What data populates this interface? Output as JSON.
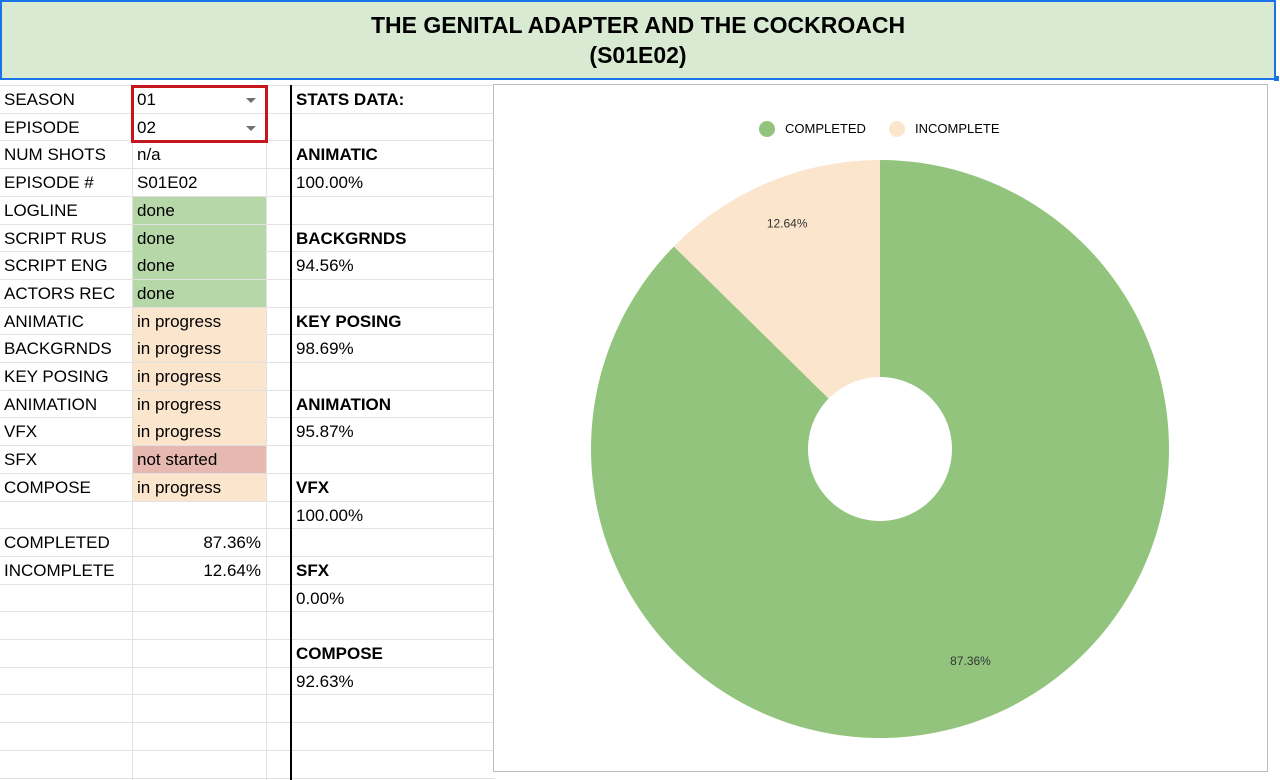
{
  "title": {
    "line1": "THE GENITAL ADAPTER AND THE COCKROACH",
    "line2": "(S01E02)"
  },
  "fields": [
    {
      "label": "SEASON",
      "value": "01",
      "status": "dropdown"
    },
    {
      "label": "EPISODE",
      "value": "02",
      "status": "dropdown"
    },
    {
      "label": "NUM SHOTS",
      "value": "n/a",
      "status": "plain"
    },
    {
      "label": "EPISODE #",
      "value": "S01E02",
      "status": "plain"
    },
    {
      "label": "LOGLINE",
      "value": "done",
      "status": "done"
    },
    {
      "label": "SCRIPT RUS",
      "value": "done",
      "status": "done"
    },
    {
      "label": "SCRIPT ENG",
      "value": "done",
      "status": "done"
    },
    {
      "label": "ACTORS REC",
      "value": "done",
      "status": "done"
    },
    {
      "label": "ANIMATIC",
      "value": "in progress",
      "status": "progress"
    },
    {
      "label": "BACKGRNDS",
      "value": "in progress",
      "status": "progress"
    },
    {
      "label": "KEY POSING",
      "value": "in progress",
      "status": "progress"
    },
    {
      "label": "ANIMATION",
      "value": "in progress",
      "status": "progress"
    },
    {
      "label": "VFX",
      "value": "in progress",
      "status": "progress"
    },
    {
      "label": "SFX",
      "value": "not started",
      "status": "notstarted"
    },
    {
      "label": "COMPOSE",
      "value": "in progress",
      "status": "progress"
    }
  ],
  "summary": [
    {
      "label": "COMPLETED",
      "value": "87.36%"
    },
    {
      "label": "INCOMPLETE",
      "value": "12.64%"
    }
  ],
  "stats": {
    "header": "STATS DATA:",
    "items": [
      {
        "name": "ANIMATIC",
        "value": "100.00%"
      },
      {
        "name": "BACKGRNDS",
        "value": "94.56%"
      },
      {
        "name": "KEY POSING",
        "value": "98.69%"
      },
      {
        "name": "ANIMATION",
        "value": "95.87%"
      },
      {
        "name": "VFX",
        "value": "100.00%"
      },
      {
        "name": "SFX",
        "value": "0.00%"
      },
      {
        "name": "COMPOSE",
        "value": "92.63%"
      }
    ]
  },
  "colors": {
    "done": "#b6d7a8",
    "in_progress": "#fce5cd",
    "not_started": "#e6b8af",
    "header_bg": "#d9ead3",
    "completed_slice": "#93c47d",
    "incomplete_slice": "#fce5cd"
  },
  "chart_data": {
    "type": "pie",
    "donut": true,
    "legend_position": "top",
    "categories": [
      "COMPLETED",
      "INCOMPLETE"
    ],
    "values": [
      87.36,
      12.64
    ],
    "labels": [
      "87.36%",
      "12.64%"
    ],
    "colors": [
      "#93c47d",
      "#fce5cd"
    ]
  }
}
